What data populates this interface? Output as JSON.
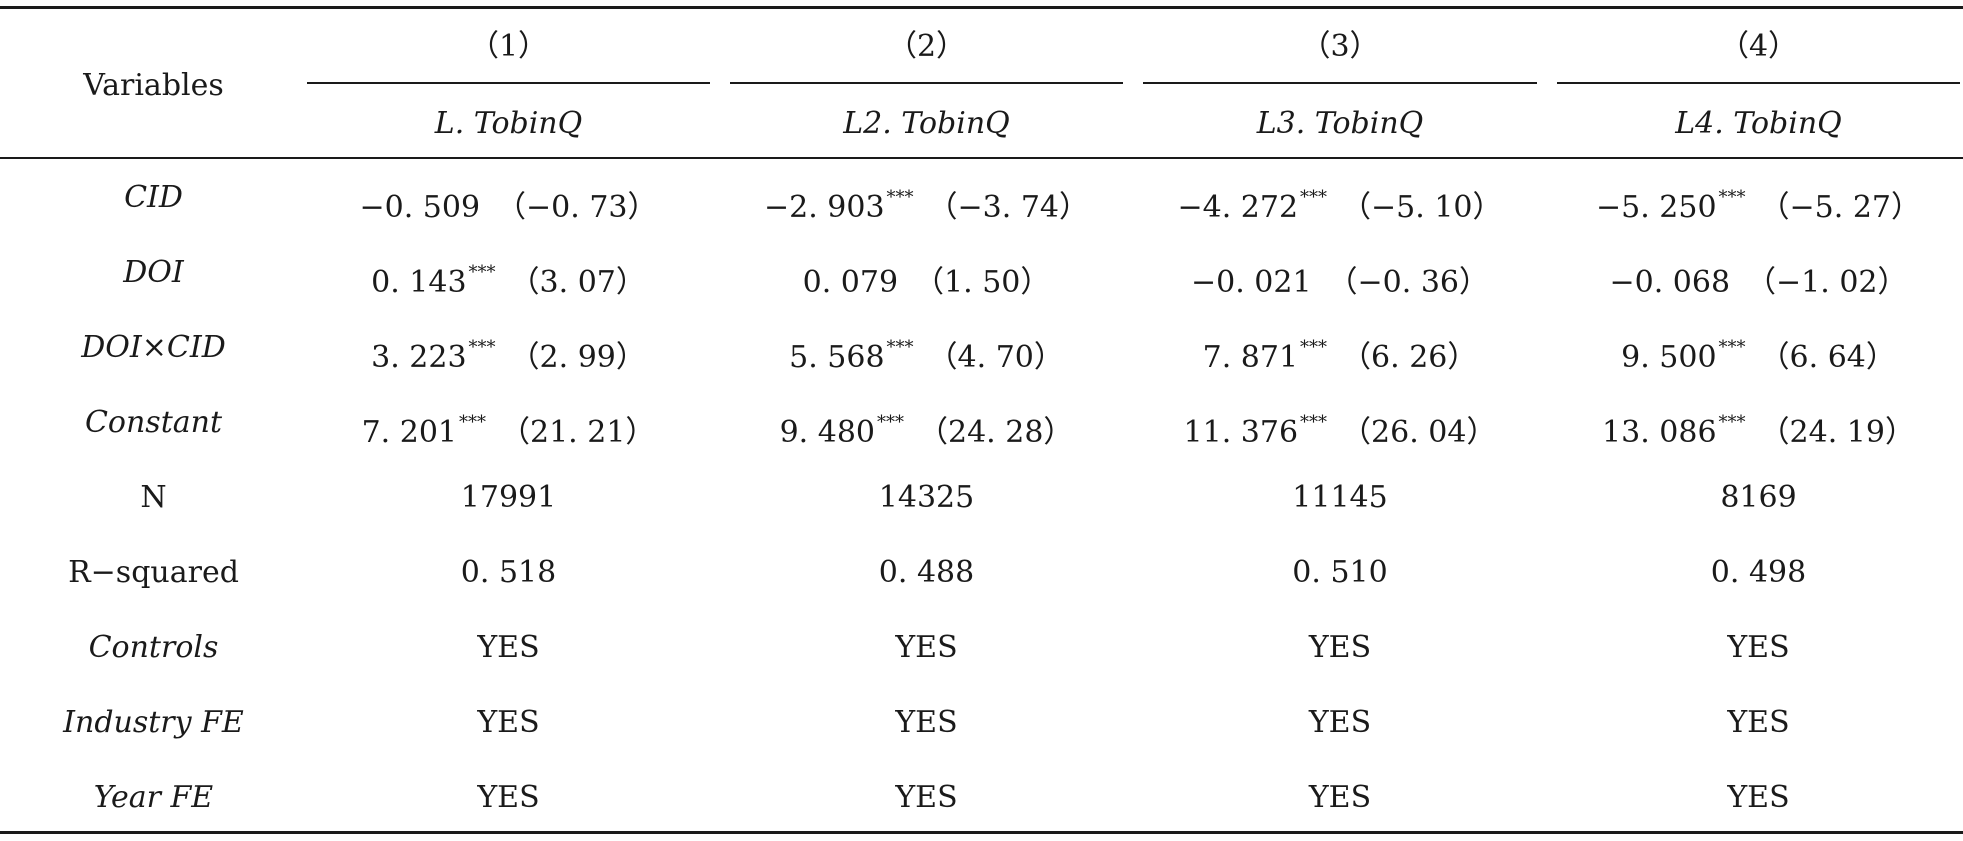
{
  "table": {
    "stub_header": "Variables",
    "columns": [
      {
        "number": "（1）",
        "dependent": "L. TobinQ"
      },
      {
        "number": "（2）",
        "dependent": "L2. TobinQ"
      },
      {
        "number": "（3）",
        "dependent": "L3. TobinQ"
      },
      {
        "number": "（4）",
        "dependent": "L4. TobinQ"
      }
    ],
    "rows": [
      {
        "label": "CID",
        "cells": [
          {
            "coef": "−0. 509",
            "stars": "",
            "t": "（−0. 73）"
          },
          {
            "coef": "−2. 903",
            "stars": "***",
            "t": "（−3. 74）"
          },
          {
            "coef": "−4. 272",
            "stars": "***",
            "t": "（−5. 10）"
          },
          {
            "coef": "−5. 250",
            "stars": "***",
            "t": "（−5. 27）"
          }
        ]
      },
      {
        "label": "DOI",
        "cells": [
          {
            "coef": "0. 143",
            "stars": "***",
            "t": "（3. 07）"
          },
          {
            "coef": "0. 079",
            "stars": "",
            "t": "（1. 50）"
          },
          {
            "coef": "−0. 021",
            "stars": "",
            "t": "（−0. 36）"
          },
          {
            "coef": "−0. 068",
            "stars": "",
            "t": "（−1. 02）"
          }
        ]
      },
      {
        "label": "DOI×CID",
        "cells": [
          {
            "coef": "3. 223",
            "stars": "***",
            "t": "（2. 99）"
          },
          {
            "coef": "5. 568",
            "stars": "***",
            "t": "（4. 70）"
          },
          {
            "coef": "7. 871",
            "stars": "***",
            "t": "（6. 26）"
          },
          {
            "coef": "9. 500",
            "stars": "***",
            "t": "（6. 64）"
          }
        ]
      },
      {
        "label": "Constant",
        "cells": [
          {
            "coef": "7. 201",
            "stars": "***",
            "t": "（21. 21）"
          },
          {
            "coef": "9. 480",
            "stars": "***",
            "t": "（24. 28）"
          },
          {
            "coef": "11. 376",
            "stars": "***",
            "t": "（26. 04）"
          },
          {
            "coef": "13. 086",
            "stars": "***",
            "t": "（24. 19）"
          }
        ]
      }
    ],
    "stats_rows": [
      {
        "label": "N",
        "values": [
          "17991",
          "14325",
          "11145",
          "8169"
        ]
      },
      {
        "label": "R−squared",
        "values": [
          "0. 518",
          "0. 488",
          "0. 510",
          "0. 498"
        ]
      }
    ],
    "control_rows": [
      {
        "label": "Controls",
        "values": [
          "YES",
          "YES",
          "YES",
          "YES"
        ]
      },
      {
        "label": "Industry FE",
        "values": [
          "YES",
          "YES",
          "YES",
          "YES"
        ]
      },
      {
        "label": "Year FE",
        "values": [
          "YES",
          "YES",
          "YES",
          "YES"
        ]
      }
    ]
  }
}
